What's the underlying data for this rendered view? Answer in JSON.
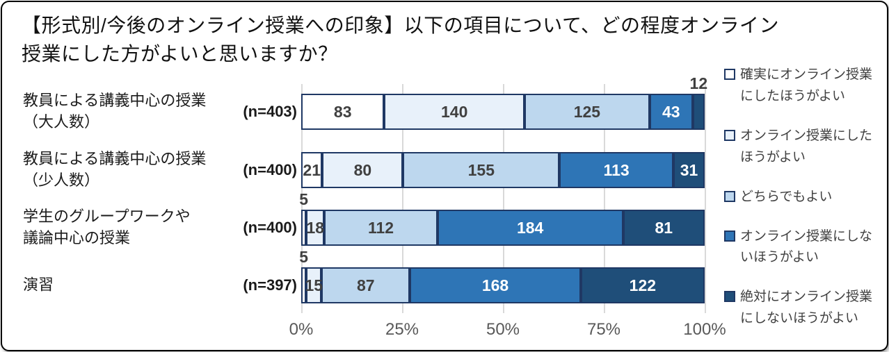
{
  "title_lines": [
    "【形式別/今後のオンライン授業への印象】以下の項目について、どの程度オンライン",
    "授業にした方がよいと思いますか？"
  ],
  "chart_data": {
    "type": "bar",
    "orientation": "horizontal-stacked",
    "title": "【形式別/今後のオンライン授業への印象】以下の項目について、どの程度オンライン授業にした方がよいと思いますか？",
    "x_ticks": [
      "0%",
      "25%",
      "50%",
      "75%",
      "100%"
    ],
    "xlim": [
      0,
      100
    ],
    "grid": true,
    "legend_position": "right",
    "categories": [
      {
        "label_lines": [
          "教員による講義中心の授業",
          "（大人数）"
        ],
        "n_label": "(n=403)",
        "n": 403
      },
      {
        "label_lines": [
          "教員による講義中心の授業",
          "（少人数）"
        ],
        "n_label": "(n=400)",
        "n": 400
      },
      {
        "label_lines": [
          "学生のグループワークや",
          "議論中心の授業"
        ],
        "n_label": "(n=400)",
        "n": 400
      },
      {
        "label_lines": [
          "演習"
        ],
        "n_label": "(n=397)",
        "n": 397
      }
    ],
    "series": [
      {
        "name": "確実にオンライン授業にしたほうがよい",
        "color": "#FFFFFF",
        "text_color": "#404040",
        "values": [
          83,
          21,
          5,
          5
        ]
      },
      {
        "name": "オンライン授業にしたほうがよい",
        "color": "#E8F1FA",
        "text_color": "#404040",
        "values": [
          140,
          80,
          18,
          15
        ]
      },
      {
        "name": "どちらでもよい",
        "color": "#BDD7EE",
        "text_color": "#404040",
        "values": [
          125,
          155,
          112,
          87
        ]
      },
      {
        "name": "オンライン授業にしないほうがよい",
        "color": "#2E75B6",
        "text_color": "#FFFFFF",
        "values": [
          43,
          113,
          184,
          168
        ]
      },
      {
        "name": "絶対にオンライン授業にしないほうがよい",
        "color": "#1F4E79",
        "text_color": "#FFFFFF",
        "values": [
          12,
          31,
          81,
          122
        ]
      }
    ],
    "outside_labels": [
      {
        "row": 0,
        "series": 4,
        "value": 12
      },
      {
        "row": 2,
        "series": 0,
        "value": 5
      },
      {
        "row": 3,
        "series": 0,
        "value": 5
      }
    ]
  },
  "colors": {
    "segment_border": "#1F3864",
    "gridline": "#D9D9D9",
    "axis_text": "#595959",
    "value_text_dark": "#404040",
    "card_border": "#000000",
    "background": "#FFFFFF"
  }
}
